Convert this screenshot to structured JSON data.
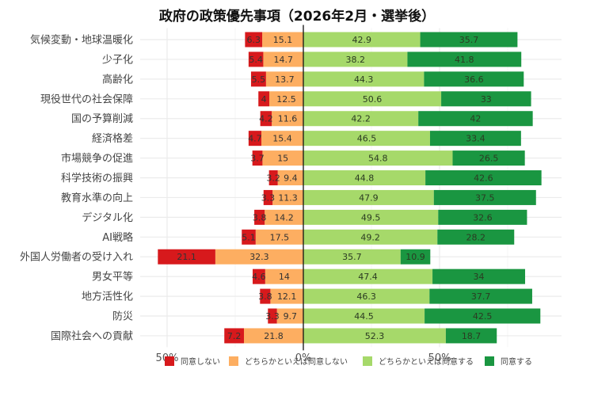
{
  "chart_data": {
    "type": "bar",
    "orientation": "horizontal",
    "stacked": "diverging",
    "title": "政府の政策優先事項（2026年2月・選挙後）",
    "xlabel": "",
    "ylabel": "",
    "xlim": [
      -55,
      95
    ],
    "xticks": [
      -50,
      0,
      50
    ],
    "xtick_labels": [
      "50%",
      "0%",
      "50%"
    ],
    "grid": true,
    "legend_position": "bottom",
    "categories": [
      "気候変動・地球温暖化",
      "少子化",
      "高齢化",
      "現役世代の社会保障",
      "国の予算削減",
      "経済格差",
      "市場競争の促進",
      "科学技術の振興",
      "教育水準の向上",
      "デジタル化",
      "AI戦略",
      "外国人労働者の受け入れ",
      "男女平等",
      "地方活性化",
      "防災",
      "国際社会への貢献"
    ],
    "series": [
      {
        "name": "同意しない",
        "side": "negative",
        "color": "#d7191c",
        "values": [
          6.3,
          5.4,
          5.5,
          4,
          4.2,
          4.7,
          3.7,
          3.2,
          3.3,
          3.8,
          5.1,
          21.1,
          4.6,
          3.8,
          3.3,
          7.2
        ]
      },
      {
        "name": "どちらかといえば同意しない",
        "side": "negative",
        "color": "#fdae61",
        "values": [
          15.1,
          14.7,
          13.7,
          12.5,
          11.6,
          15.4,
          15,
          9.4,
          11.3,
          14.2,
          17.5,
          32.3,
          14,
          12.1,
          9.7,
          21.8
        ]
      },
      {
        "name": "どちらかといえば同意する",
        "side": "positive",
        "color": "#a6d96a",
        "values": [
          42.9,
          38.2,
          44.3,
          50.6,
          42.2,
          46.5,
          54.8,
          44.8,
          47.9,
          49.5,
          49.2,
          35.7,
          47.4,
          46.3,
          44.5,
          52.3
        ]
      },
      {
        "name": "同意する",
        "side": "positive",
        "color": "#1a9641",
        "values": [
          35.7,
          41.8,
          36.6,
          33,
          42,
          33.4,
          26.5,
          42.6,
          37.5,
          32.6,
          28.2,
          10.9,
          34,
          37.7,
          42.5,
          18.7
        ]
      }
    ]
  }
}
